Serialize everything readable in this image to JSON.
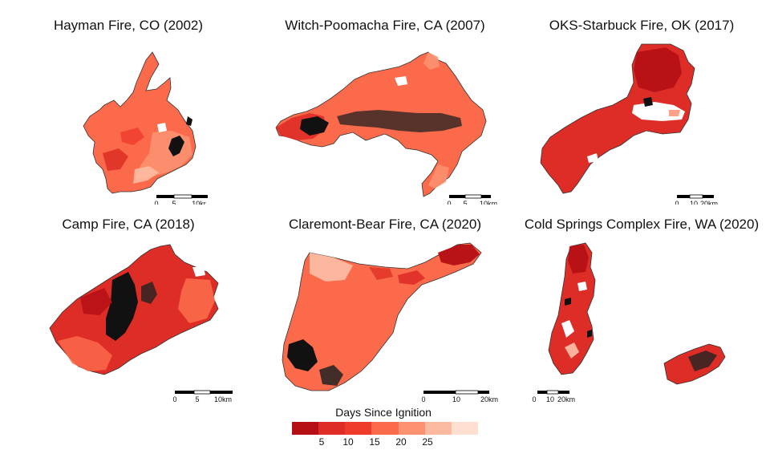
{
  "panels": [
    {
      "title": "Hayman Fire, CO (2002)",
      "scale_labels": [
        "0",
        "5",
        "10kr"
      ]
    },
    {
      "title": "Witch-Poomacha Fire, CA (2007)",
      "scale_labels": [
        "0",
        "5",
        "10km"
      ]
    },
    {
      "title": "OKS-Starbuck Fire, OK (2017)",
      "scale_labels": [
        "0",
        "10",
        "20km"
      ]
    },
    {
      "title": "Camp Fire, CA (2018)",
      "scale_labels": [
        "0",
        "5",
        "10km"
      ]
    },
    {
      "title": "Claremont-Bear Fire, CA (2020)",
      "scale_labels": [
        "0",
        "10",
        "20km"
      ]
    },
    {
      "title": "Cold Springs Complex Fire, WA (2020)",
      "scale_labels": [
        "0",
        "10",
        "20km"
      ]
    }
  ],
  "legend": {
    "title": "Days Since Ignition",
    "colors": [
      "#b50f15",
      "#de2d26",
      "#ef3b2c",
      "#fb6a4a",
      "#fc9272",
      "#fcbba1",
      "#fee0d2"
    ],
    "ticks": [
      "5",
      "10",
      "15",
      "20",
      "25"
    ]
  },
  "map_colors": {
    "dark": "#111111",
    "outline": "#333333",
    "background": "#ffffff"
  }
}
